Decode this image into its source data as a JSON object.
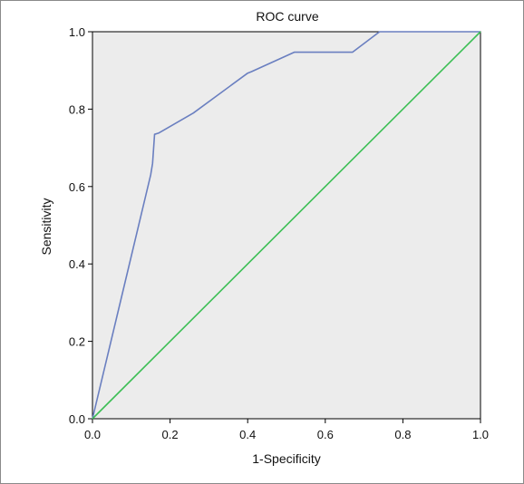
{
  "chart_data": {
    "type": "line",
    "title": "ROC curve",
    "xlabel": "1-Specificity",
    "ylabel": "Sensitivity",
    "xlim": [
      0,
      1
    ],
    "ylim": [
      0,
      1
    ],
    "xticks": [
      "0.0",
      "0.2",
      "0.4",
      "0.6",
      "0.8",
      "1.0"
    ],
    "yticks": [
      "0.0",
      "0.2",
      "0.4",
      "0.6",
      "0.8",
      "1.0"
    ],
    "grid": false,
    "legend": "none",
    "plot_background": "#ececec",
    "series": [
      {
        "color": "#6a7fc0",
        "x": [
          0.0,
          0.15,
          0.155,
          0.16,
          0.17,
          0.26,
          0.4,
          0.41,
          0.52,
          0.67,
          0.74,
          1.0
        ],
        "y": [
          0.0,
          0.63,
          0.66,
          0.735,
          0.738,
          0.79,
          0.893,
          0.897,
          0.947,
          0.947,
          1.0,
          1.0
        ]
      },
      {
        "color": "#3cbf55",
        "x": [
          0.0,
          1.0
        ],
        "y": [
          0.0,
          1.0
        ]
      }
    ]
  }
}
